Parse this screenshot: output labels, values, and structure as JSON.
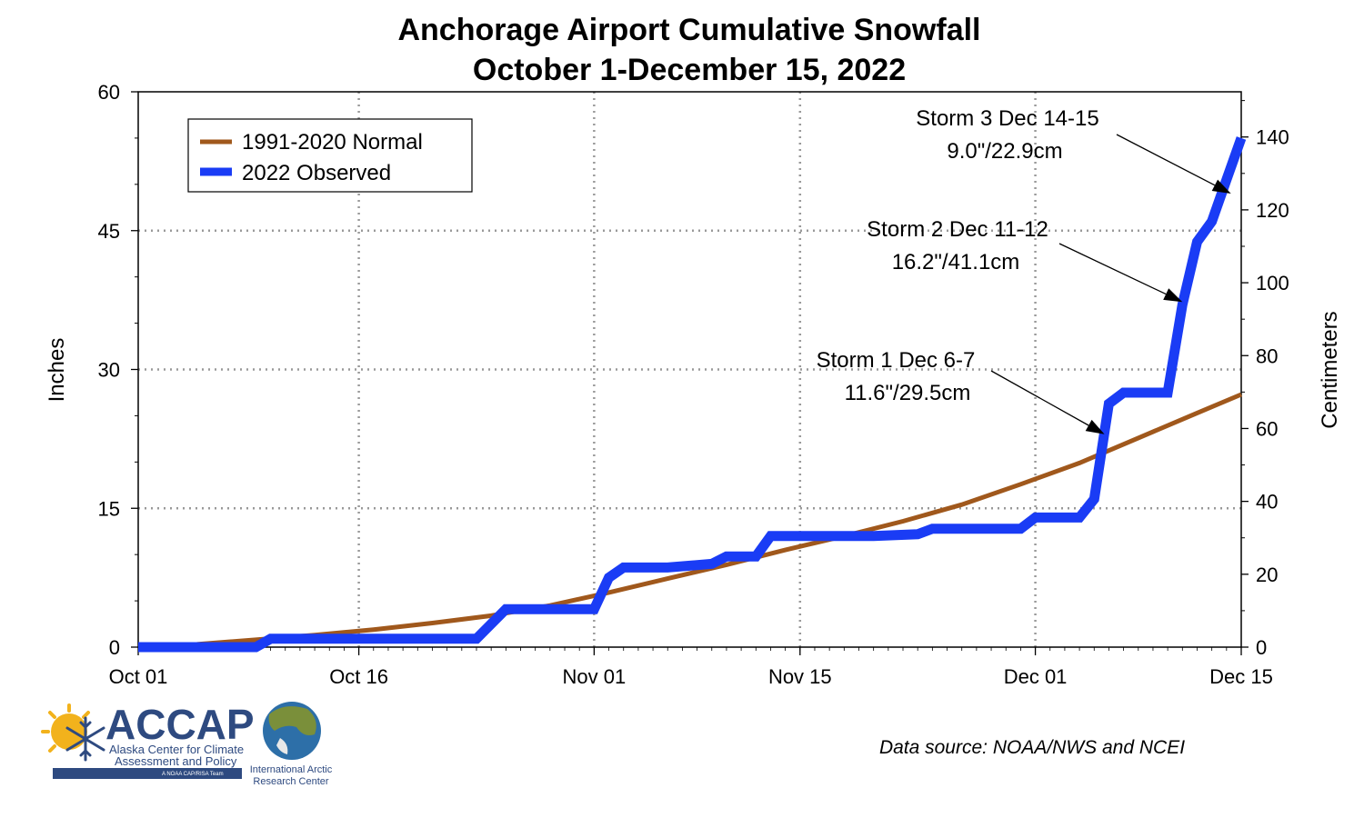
{
  "chart_data": {
    "type": "line",
    "title": [
      "Anchorage Airport Cumulative Snowfall",
      "October 1-December 15, 2022"
    ],
    "ylabel": "Inches",
    "ylabel_right": "Centimeters",
    "ylim": [
      0,
      60
    ],
    "ylim_right_cm": [
      0,
      152.4
    ],
    "yticks": [
      0,
      15,
      30,
      45,
      60
    ],
    "yticks_right": [
      0,
      20,
      40,
      60,
      80,
      100,
      120,
      140
    ],
    "xlim_day": [
      1,
      76
    ],
    "xticks": [
      {
        "day": 1,
        "label": "Oct 01"
      },
      {
        "day": 16,
        "label": "Oct 16"
      },
      {
        "day": 32,
        "label": "Nov 01"
      },
      {
        "day": 46,
        "label": "Nov 15"
      },
      {
        "day": 62,
        "label": "Dec 01"
      },
      {
        "day": 76,
        "label": "Dec 15"
      }
    ],
    "grid": true,
    "legend_position": "top-left",
    "series": [
      {
        "name": "1991-2020 Normal",
        "color": "#a0581c",
        "x": [
          1,
          5,
          9,
          13,
          17,
          21,
          25,
          29,
          33,
          37,
          41,
          45,
          49,
          53,
          57,
          61,
          65,
          69,
          73,
          76
        ],
        "y": [
          0.0,
          0.3,
          0.8,
          1.3,
          1.9,
          2.6,
          3.4,
          4.5,
          5.9,
          7.4,
          8.9,
          10.5,
          12.0,
          13.6,
          15.4,
          17.6,
          19.9,
          22.6,
          25.3,
          27.3
        ]
      },
      {
        "name": "2022 Observed",
        "color": "#1a3cf5",
        "x": [
          1,
          9,
          10,
          15,
          24,
          26,
          32,
          33,
          34,
          37,
          40,
          41,
          43,
          44,
          46,
          47,
          51,
          54,
          55,
          56,
          58,
          61,
          62,
          65,
          66,
          67,
          68,
          70,
          71,
          72,
          73,
          74,
          75,
          76
        ],
        "y": [
          0,
          0,
          0.9,
          0.9,
          0.9,
          4.1,
          4.1,
          7.5,
          8.6,
          8.6,
          9.0,
          9.8,
          9.8,
          12.0,
          12.0,
          12.0,
          12.0,
          12.2,
          12.8,
          12.8,
          12.8,
          12.8,
          14.0,
          14.0,
          16.0,
          26.3,
          27.5,
          27.5,
          27.5,
          37.0,
          43.8,
          46.0,
          50.5,
          55.0
        ]
      }
    ],
    "annotations": [
      {
        "lines": [
          "Storm 3 Dec 14-15",
          "9.0\"/22.9cm"
        ],
        "arrow_to_day": 75.3,
        "arrow_to_value": 49.0
      },
      {
        "lines": [
          "Storm 2 Dec 11-12",
          "16.2\"/41.1cm"
        ],
        "arrow_to_day": 72.0,
        "arrow_to_value": 37.3
      },
      {
        "lines": [
          "Storm 1 Dec 6-7",
          "11.6\"/29.5cm"
        ],
        "arrow_to_day": 66.7,
        "arrow_to_value": 23.0
      }
    ]
  },
  "footer": {
    "source": "Data source: NOAA/NWS and NCEI",
    "accap_logo": {
      "name": "ACCAP",
      "line1": "Alaska Center for Climate",
      "line2": "Assessment and Policy",
      "tagline": "A NOAA CAP/RISA Team"
    },
    "iarc_logo": {
      "line1": "International Arctic",
      "line2": "Research Center"
    }
  }
}
